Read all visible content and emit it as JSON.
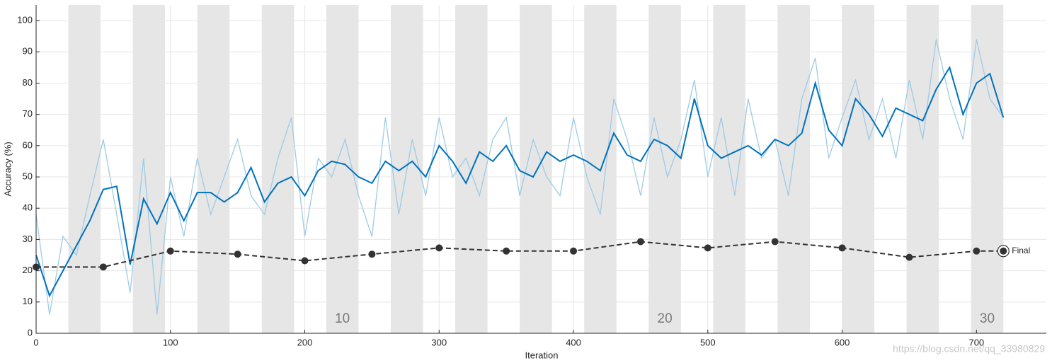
{
  "chart_data": {
    "type": "line",
    "xlabel": "Iteration",
    "ylabel": "Accuracy (%)",
    "xlim": [
      0,
      752
    ],
    "ylim": [
      0,
      105
    ],
    "xticks": [
      0,
      100,
      200,
      300,
      400,
      500,
      600,
      700
    ],
    "yticks": [
      0,
      10,
      20,
      30,
      40,
      50,
      60,
      70,
      80,
      90,
      100
    ],
    "grid": true,
    "shaded_epochs": [
      [
        24,
        48
      ],
      [
        72,
        96
      ],
      [
        120,
        144
      ],
      [
        168,
        192
      ],
      [
        216,
        240
      ],
      [
        264,
        288
      ],
      [
        312,
        336
      ],
      [
        360,
        384
      ],
      [
        408,
        432
      ],
      [
        456,
        480
      ],
      [
        504,
        528
      ],
      [
        552,
        576
      ],
      [
        600,
        624
      ],
      [
        648,
        672
      ],
      [
        696,
        720
      ]
    ],
    "epoch_ticks": [
      {
        "value": 228,
        "label": "10"
      },
      {
        "value": 468,
        "label": "20"
      },
      {
        "value": 708,
        "label": "30"
      }
    ],
    "x": [
      0,
      10,
      20,
      30,
      40,
      50,
      60,
      70,
      80,
      90,
      100,
      110,
      120,
      130,
      140,
      150,
      160,
      170,
      180,
      190,
      200,
      210,
      220,
      230,
      240,
      250,
      260,
      270,
      280,
      290,
      300,
      310,
      320,
      330,
      340,
      350,
      360,
      370,
      380,
      390,
      400,
      410,
      420,
      430,
      440,
      450,
      460,
      470,
      480,
      490,
      500,
      510,
      520,
      530,
      540,
      550,
      560,
      570,
      580,
      590,
      600,
      610,
      620,
      630,
      640,
      650,
      660,
      670,
      680,
      690,
      700,
      710,
      720
    ],
    "series": [
      {
        "color": "#9dcbe6",
        "values": [
          38,
          6,
          31,
          25,
          44,
          62,
          38,
          13,
          56,
          6,
          50,
          31,
          56,
          38,
          50,
          62,
          44,
          38,
          56,
          69,
          31,
          56,
          50,
          62,
          44,
          31,
          69,
          38,
          62,
          44,
          69,
          50,
          56,
          44,
          62,
          69,
          44,
          62,
          50,
          44,
          69,
          50,
          38,
          75,
          62,
          44,
          69,
          50,
          62,
          81,
          50,
          69,
          44,
          75,
          56,
          62,
          44,
          75,
          88,
          56,
          69,
          81,
          62,
          75,
          56,
          81,
          62,
          94,
          75,
          62,
          94,
          75,
          69
        ]
      },
      {
        "color": "#0072bd",
        "values": [
          25,
          12,
          20,
          28,
          36,
          46,
          47,
          22,
          43,
          35,
          45,
          36,
          45,
          45,
          42,
          45,
          53,
          42,
          48,
          50,
          44,
          52,
          55,
          54,
          50,
          48,
          55,
          52,
          55,
          50,
          60,
          55,
          48,
          58,
          55,
          60,
          52,
          50,
          58,
          55,
          57,
          55,
          52,
          64,
          57,
          55,
          62,
          60,
          56,
          75,
          60,
          56,
          58,
          60,
          57,
          62,
          60,
          64,
          80,
          65,
          60,
          75,
          70,
          63,
          72,
          70,
          68,
          78,
          85,
          70,
          80,
          83,
          69
        ]
      },
      {
        "color": "#333333",
        "line_style": "dashed",
        "x": [
          0,
          50,
          100,
          150,
          200,
          250,
          300,
          350,
          400,
          450,
          500,
          550,
          600,
          650,
          700,
          720
        ],
        "values": [
          21.2,
          21.2,
          26.3,
          25.3,
          23.2,
          25.3,
          27.3,
          26.3,
          26.3,
          29.3,
          27.3,
          29.3,
          27.3,
          24.3,
          26.3,
          26.3
        ]
      }
    ],
    "final_label": "Final",
    "watermark": "https://blog.csdn.net/qq_33980829"
  }
}
